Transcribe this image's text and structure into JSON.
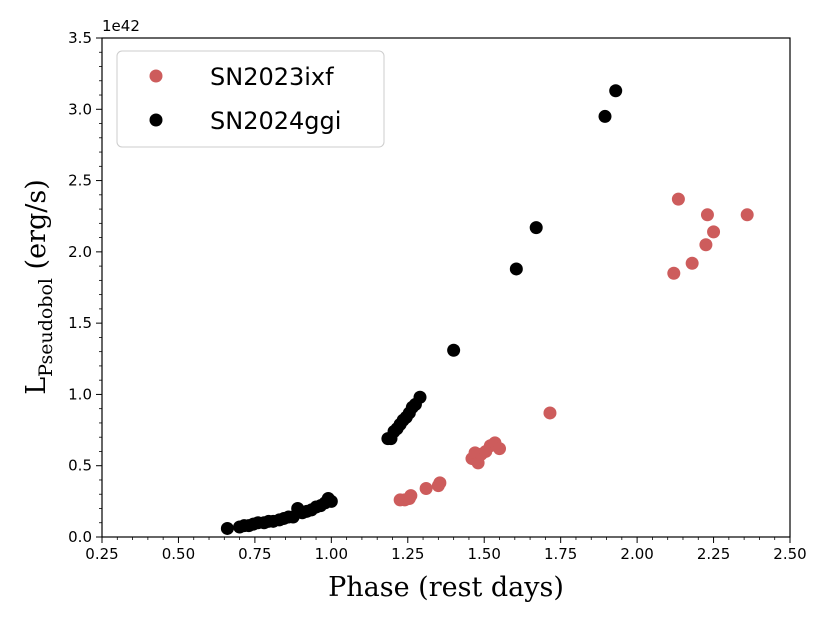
{
  "chart_data": {
    "type": "scatter",
    "title": "",
    "xlabel": "Phase (rest days)",
    "ylabel_main": "L",
    "ylabel_sub": "Pseudobol",
    "ylabel_unit": " (erg/s)",
    "y_offset_label": "1e42",
    "xlim": [
      0.25,
      2.5
    ],
    "ylim": [
      0.0,
      3.5
    ],
    "x_ticks": [
      0.25,
      0.5,
      0.75,
      1.0,
      1.25,
      1.5,
      1.75,
      2.0,
      2.25,
      2.5
    ],
    "x_tick_labels": [
      "0.25",
      "0.50",
      "0.75",
      "1.00",
      "1.25",
      "1.50",
      "1.75",
      "2.00",
      "2.25",
      "2.50"
    ],
    "y_ticks": [
      0.0,
      0.5,
      1.0,
      1.5,
      2.0,
      2.5,
      3.0,
      3.5
    ],
    "y_tick_labels": [
      "0.0",
      "0.5",
      "1.0",
      "1.5",
      "2.0",
      "2.5",
      "3.0",
      "3.5"
    ],
    "legend_position": "top-left",
    "series": [
      {
        "name": "SN2023ixf",
        "color": "#cd5c5c",
        "points": [
          [
            1.225,
            0.26
          ],
          [
            1.24,
            0.26
          ],
          [
            1.255,
            0.27
          ],
          [
            1.26,
            0.29
          ],
          [
            1.31,
            0.34
          ],
          [
            1.35,
            0.36
          ],
          [
            1.355,
            0.38
          ],
          [
            1.46,
            0.55
          ],
          [
            1.47,
            0.59
          ],
          [
            1.48,
            0.52
          ],
          [
            1.49,
            0.58
          ],
          [
            1.505,
            0.6
          ],
          [
            1.52,
            0.64
          ],
          [
            1.535,
            0.66
          ],
          [
            1.55,
            0.62
          ],
          [
            1.715,
            0.87
          ],
          [
            2.12,
            1.85
          ],
          [
            2.135,
            2.37
          ],
          [
            2.18,
            1.92
          ],
          [
            2.225,
            2.05
          ],
          [
            2.23,
            2.26
          ],
          [
            2.25,
            2.14
          ],
          [
            2.36,
            2.26
          ]
        ]
      },
      {
        "name": "SN2024ggi",
        "color": "#000000",
        "points": [
          [
            0.66,
            0.06
          ],
          [
            0.7,
            0.07
          ],
          [
            0.715,
            0.08
          ],
          [
            0.73,
            0.08
          ],
          [
            0.745,
            0.09
          ],
          [
            0.76,
            0.1
          ],
          [
            0.78,
            0.1
          ],
          [
            0.795,
            0.11
          ],
          [
            0.81,
            0.11
          ],
          [
            0.83,
            0.12
          ],
          [
            0.845,
            0.13
          ],
          [
            0.86,
            0.14
          ],
          [
            0.875,
            0.14
          ],
          [
            0.89,
            0.2
          ],
          [
            0.905,
            0.17
          ],
          [
            0.92,
            0.18
          ],
          [
            0.935,
            0.19
          ],
          [
            0.95,
            0.21
          ],
          [
            0.965,
            0.22
          ],
          [
            0.98,
            0.24
          ],
          [
            0.99,
            0.27
          ],
          [
            1.0,
            0.25
          ],
          [
            1.185,
            0.69
          ],
          [
            1.195,
            0.69
          ],
          [
            1.205,
            0.74
          ],
          [
            1.215,
            0.76
          ],
          [
            1.225,
            0.79
          ],
          [
            1.235,
            0.82
          ],
          [
            1.245,
            0.84
          ],
          [
            1.255,
            0.87
          ],
          [
            1.265,
            0.91
          ],
          [
            1.275,
            0.93
          ],
          [
            1.29,
            0.98
          ],
          [
            1.4,
            1.31
          ],
          [
            1.605,
            1.88
          ],
          [
            1.67,
            2.17
          ],
          [
            1.895,
            2.95
          ],
          [
            1.93,
            3.13
          ]
        ]
      }
    ]
  }
}
